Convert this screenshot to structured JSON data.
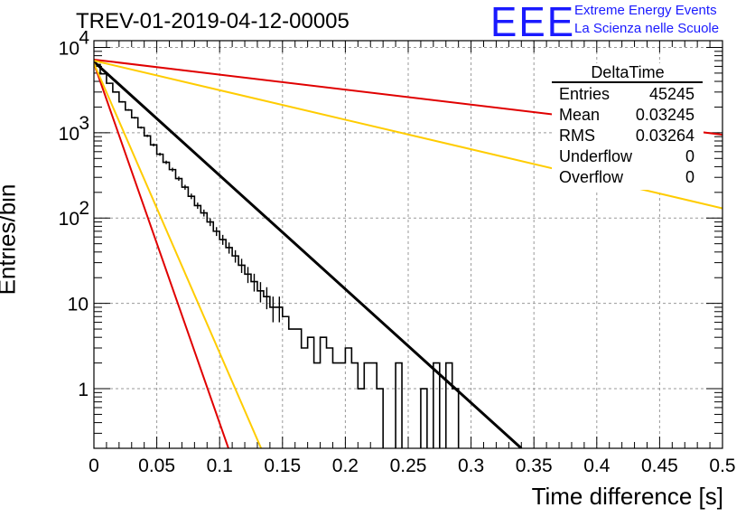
{
  "header": {
    "title": "TREV-01-2019-04-12-00005",
    "logo_text": "EEE",
    "logo_line1": "Extreme Energy Events",
    "logo_line2": "La Scienza nelle Scuole",
    "logo_color": "#1a1aff"
  },
  "stats_box": {
    "name": "DeltaTime",
    "rows": [
      {
        "label": "Entries",
        "value": "45245"
      },
      {
        "label": "Mean",
        "value": "0.03245"
      },
      {
        "label": "RMS",
        "value": "0.03264"
      },
      {
        "label": "Underflow",
        "value": "0"
      },
      {
        "label": "Overflow",
        "value": "0"
      }
    ]
  },
  "chart_data": {
    "type": "histogram",
    "xlabel": "Time difference [s]",
    "ylabel": "Entries/bin",
    "xlim": [
      0,
      0.5
    ],
    "ylim": [
      0.2,
      12000
    ],
    "yscale": "log",
    "grid": true,
    "x_ticks": [
      "0",
      "0.05",
      "0.1",
      "0.15",
      "0.2",
      "0.25",
      "0.3",
      "0.35",
      "0.4",
      "0.45",
      "0.5"
    ],
    "y_ticks": [
      {
        "value": 1,
        "label": "1"
      },
      {
        "value": 10,
        "label": "10"
      },
      {
        "value": 100,
        "label": "10",
        "exp": "2"
      },
      {
        "value": 1000,
        "label": "10",
        "exp": "3"
      },
      {
        "value": 10000,
        "label": "10",
        "exp": "4"
      }
    ],
    "bin_width": 0.005,
    "histogram_counts": [
      6300,
      4900,
      3800,
      3000,
      2300,
      1850,
      1500,
      1150,
      920,
      720,
      560,
      450,
      370,
      290,
      230,
      180,
      140,
      115,
      90,
      70,
      56,
      45,
      36,
      28,
      22,
      18,
      14,
      12,
      9,
      9,
      7,
      5,
      5,
      3,
      4,
      2,
      4,
      3,
      2,
      2,
      3,
      2,
      1,
      2,
      2,
      1,
      0,
      0,
      2,
      0,
      0,
      0,
      1,
      0,
      2,
      0,
      2,
      1,
      0,
      0,
      0,
      0,
      0,
      0,
      0,
      0,
      0,
      0,
      0,
      0,
      0,
      0,
      0,
      0,
      0,
      0,
      0,
      0,
      0,
      0,
      0,
      0,
      0,
      0,
      0,
      0,
      0,
      0,
      0,
      0,
      0,
      0,
      0,
      0,
      0,
      0,
      0,
      0,
      0,
      0
    ],
    "series": [
      {
        "color": "#000000",
        "type": "exp",
        "points": [
          [
            0,
            6800
          ],
          [
            0.34,
            0.2
          ]
        ]
      },
      {
        "color": "#e00000",
        "type": "exp",
        "points": [
          [
            0,
            7200
          ],
          [
            0.5,
            950
          ]
        ]
      },
      {
        "color": "#ffcc00",
        "type": "exp",
        "points": [
          [
            0,
            7000
          ],
          [
            0.5,
            130
          ]
        ]
      },
      {
        "color": "#e00000",
        "type": "exp",
        "points": [
          [
            0,
            6500
          ],
          [
            0.107,
            0.2
          ]
        ]
      },
      {
        "color": "#ffcc00",
        "type": "exp",
        "points": [
          [
            0,
            6500
          ],
          [
            0.133,
            0.2
          ]
        ]
      }
    ]
  }
}
